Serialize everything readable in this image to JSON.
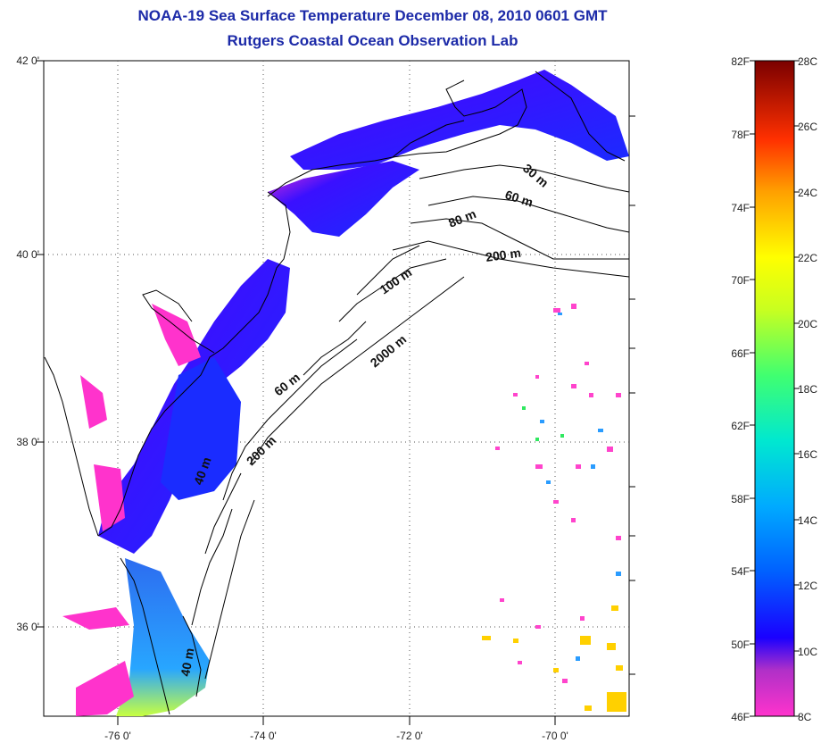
{
  "title": "NOAA-19 Sea Surface Temperature December 08, 2010 0601 GMT",
  "subtitle": "Rutgers Coastal Ocean Observation Lab",
  "lat_ticks": [
    "42 0'",
    "40 0'",
    "38 0'",
    "36 0'"
  ],
  "lon_ticks": [
    "-76 0'",
    "-74 0'",
    "-72 0'",
    "-70 0'"
  ],
  "isobaths": [
    "30 m",
    "60 m",
    "80 m",
    "200 m",
    "100 m",
    "2000 m",
    "60 m",
    "40 m",
    "200 m",
    "40 m"
  ],
  "colorbar": {
    "f_labels": [
      "82F",
      "78F",
      "74F",
      "70F",
      "66F",
      "62F",
      "58F",
      "54F",
      "50F",
      "46F"
    ],
    "c_labels": [
      "28C",
      "26C",
      "24C",
      "22C",
      "20C",
      "18C",
      "16C",
      "14C",
      "12C",
      "10C",
      "8C"
    ]
  },
  "colors": {
    "title": "#1c2aa8",
    "cold": "#ff00ff",
    "cool": "#0000ff",
    "mid": "#00c8ff",
    "warm": "#ffff00",
    "hot": "#ff0000"
  }
}
